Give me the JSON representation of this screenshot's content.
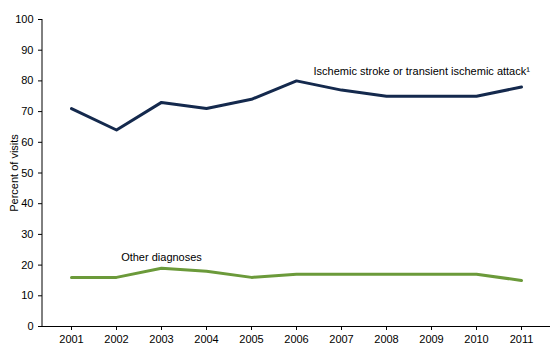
{
  "chart_data": {
    "type": "line",
    "y_label": "Percent of visits",
    "categories": [
      "2001",
      "2002",
      "2003",
      "2004",
      "2005",
      "2006",
      "2007",
      "2008",
      "2009",
      "2010",
      "2011"
    ],
    "series": [
      {
        "name": "Ischemic stroke or transient ischemic attack¹",
        "color": "#14294d",
        "marker": "none",
        "line_style": "solid",
        "values": [
          71,
          64,
          73,
          71,
          74,
          80,
          77,
          75,
          75,
          75,
          78
        ]
      },
      {
        "name": "Other diagnoses",
        "color": "#6b9a3a",
        "marker": "none",
        "line_style": "solid",
        "values": [
          16,
          16,
          19,
          18,
          16,
          17,
          17,
          17,
          17,
          17,
          15
        ]
      }
    ],
    "ylim": [
      0,
      100
    ],
    "yticks": [
      0,
      10,
      20,
      30,
      40,
      50,
      60,
      70,
      80,
      90,
      100
    ],
    "grid": false
  }
}
